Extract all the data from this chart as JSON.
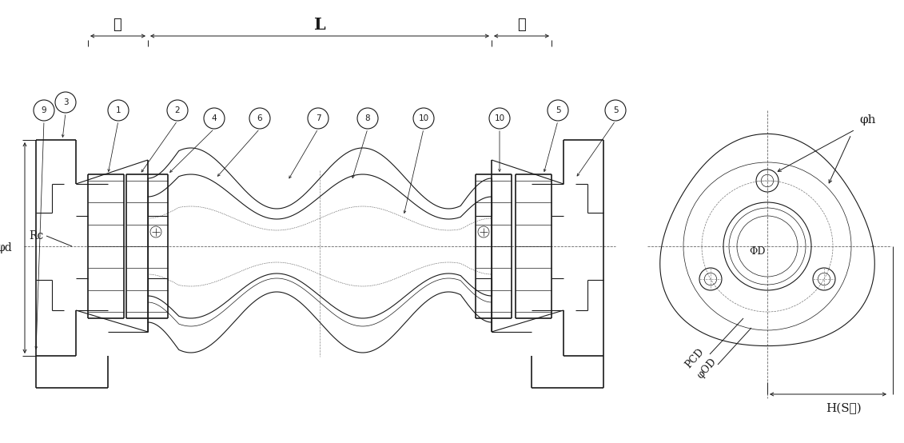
{
  "bg_color": "#ffffff",
  "line_color": "#1a1a1a",
  "fig_width": 11.31,
  "fig_height": 5.54,
  "dpi": 100,
  "dim_labels": {
    "ell": "ℓ",
    "L": "L",
    "phi_d": "φd",
    "Rc": "Rc",
    "phi_h": "φh",
    "phi_D": "ΦD",
    "phi_OD": "φOD",
    "PCD": "PCD",
    "H_S": "H(S角)"
  }
}
